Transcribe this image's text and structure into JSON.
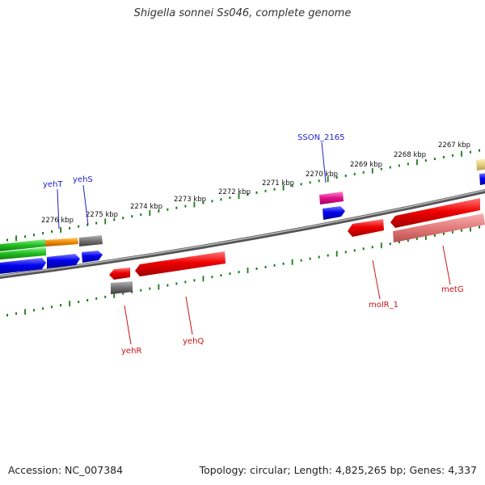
{
  "title": "Shigella sonnei Ss046, complete genome",
  "footer": {
    "accession": "Accession: NC_007384",
    "topology": "Topology: circular; Length: 4,825,265 bp; Genes: 4,337"
  },
  "map": {
    "tick_labels": [
      "2276 kbp",
      "2275 kbp",
      "2274 kbp",
      "2273 kbp",
      "2272 kbp",
      "2271 kbp",
      "2270 kbp",
      "2269 kbp",
      "2268 kbp",
      "2267 kbp"
    ],
    "top_gene_labels": [
      "yehT",
      "yehS",
      "SSON_2165"
    ],
    "bottom_gene_labels": [
      "yehR",
      "yehQ",
      "molR_1",
      "metG"
    ]
  }
}
